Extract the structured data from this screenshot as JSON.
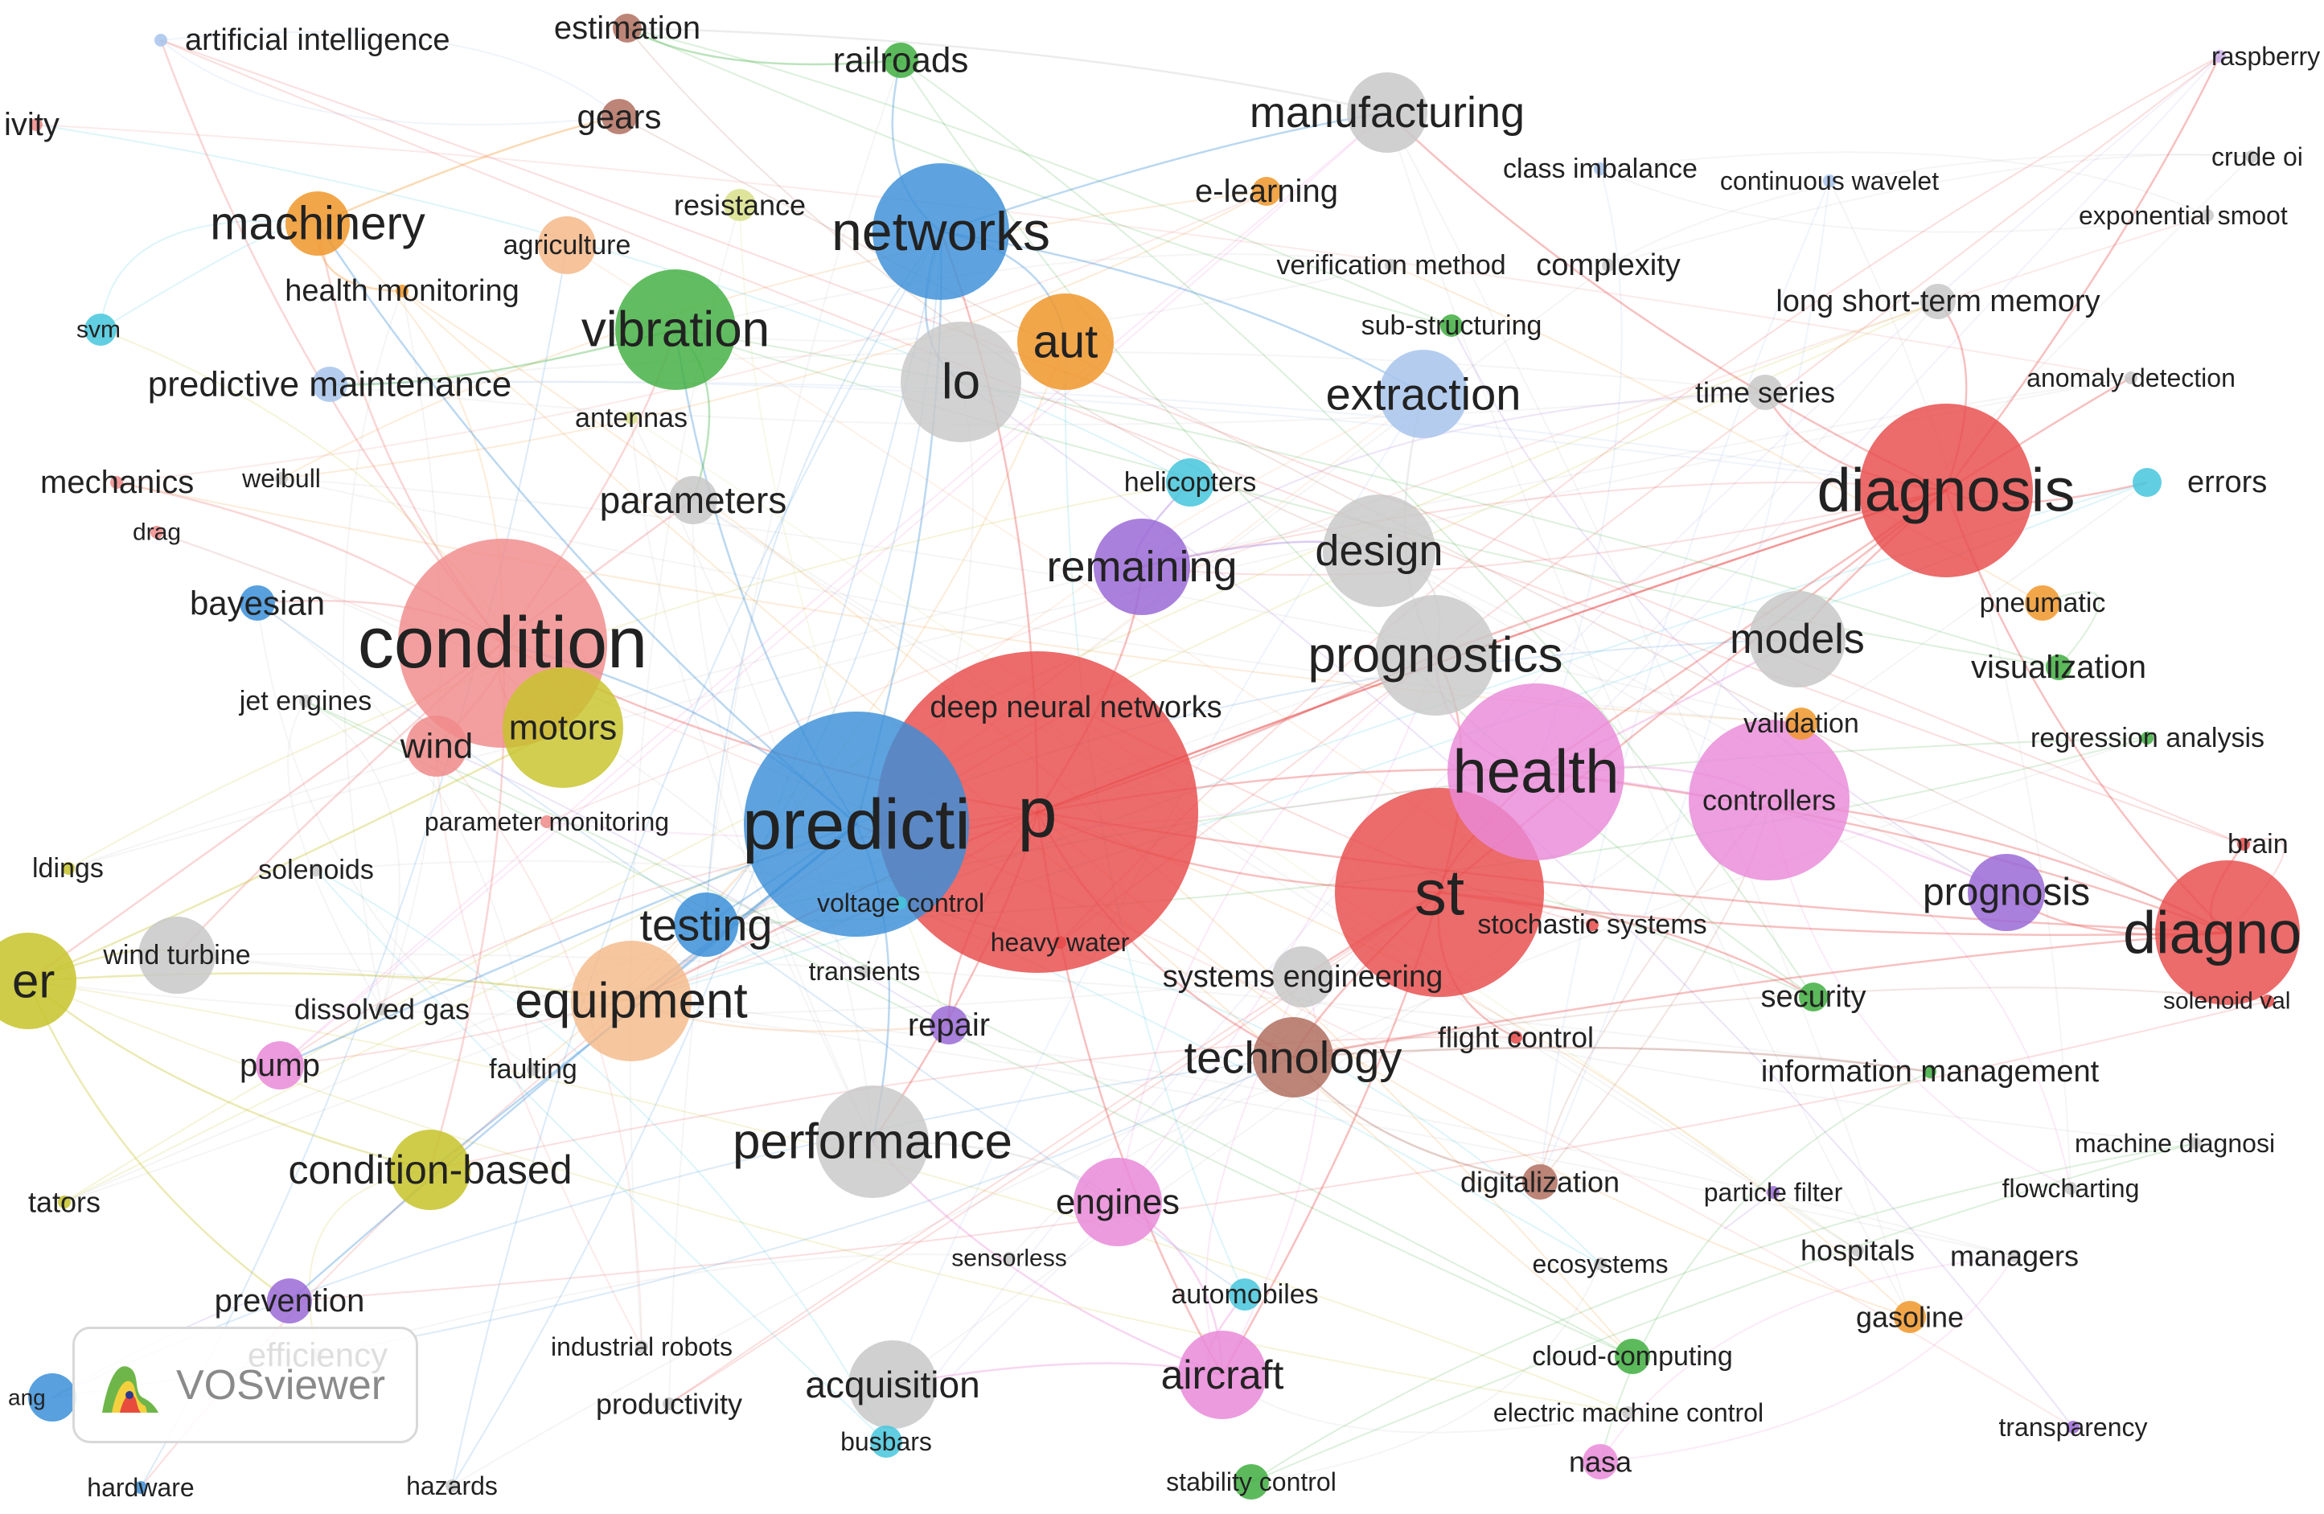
{
  "app": {
    "name": "VOSviewer"
  },
  "colors": {
    "red": "#e84a4a",
    "blue": "#3b8fd8",
    "green": "#3fae3f",
    "olive": "#c7c32a",
    "orange": "#f0962a",
    "purple": "#9a6ad6",
    "pink": "#e98ad8",
    "gray": "#c8c8c8",
    "salmon": "#f08a8a",
    "cyan": "#45c6dc",
    "brown": "#b07060",
    "lavender": "#c9b0e8",
    "lightblue": "#a7c4ec",
    "peach": "#f4b98a",
    "yellowgreen": "#d8e08a"
  },
  "nodes": [
    {
      "id": "ai",
      "label": "artificial intelligence",
      "color": "lightblue"
    },
    {
      "id": "estimation",
      "label": "estimation",
      "color": "brown"
    },
    {
      "id": "railroads",
      "label": "railroads",
      "color": "green"
    },
    {
      "id": "raspberry",
      "label": "raspberry p",
      "color": "lavender"
    },
    {
      "id": "ivity",
      "label": "ivity",
      "color": "salmon"
    },
    {
      "id": "gears",
      "label": "gears",
      "color": "brown"
    },
    {
      "id": "manufacturing",
      "label": "manufacturing",
      "color": "gray"
    },
    {
      "id": "crude",
      "label": "crude oi",
      "color": "gray"
    },
    {
      "id": "classimb",
      "label": "class imbalance",
      "color": "lightblue"
    },
    {
      "id": "contwavelet",
      "label": "continuous wavelet",
      "color": "lightblue"
    },
    {
      "id": "expsmooth",
      "label": "exponential smoot",
      "color": "gray"
    },
    {
      "id": "machinery",
      "label": "machinery",
      "color": "orange"
    },
    {
      "id": "resistance",
      "label": "resistance",
      "color": "yellowgreen"
    },
    {
      "id": "networks",
      "label": "networks",
      "color": "blue"
    },
    {
      "id": "elearning",
      "label": "e-learning",
      "color": "orange"
    },
    {
      "id": "agriculture",
      "label": "agriculture",
      "color": "peach"
    },
    {
      "id": "healthmon",
      "label": "health monitoring",
      "color": "orange"
    },
    {
      "id": "verification",
      "label": "verification method",
      "color": "gray"
    },
    {
      "id": "complexity",
      "label": "complexity",
      "color": "gray"
    },
    {
      "id": "lstm",
      "label": "long short-term memory",
      "color": "gray"
    },
    {
      "id": "svm",
      "label": "svm",
      "color": "cyan"
    },
    {
      "id": "vibration",
      "label": "vibration",
      "color": "green"
    },
    {
      "id": "aut",
      "label": "aut",
      "color": "orange"
    },
    {
      "id": "substructuring",
      "label": "sub-structuring",
      "color": "green"
    },
    {
      "id": "predmaint",
      "label": "predictive maintenance",
      "color": "lightblue"
    },
    {
      "id": "lo",
      "label": "lo",
      "color": "gray"
    },
    {
      "id": "extraction",
      "label": "extraction",
      "color": "lightblue"
    },
    {
      "id": "timeseries",
      "label": "time series",
      "color": "gray"
    },
    {
      "id": "anomaly",
      "label": "anomaly detection",
      "color": "gray"
    },
    {
      "id": "antennas",
      "label": "antennas",
      "color": "yellowgreen"
    },
    {
      "id": "mechanics",
      "label": "mechanics",
      "color": "salmon"
    },
    {
      "id": "weibull",
      "label": "weibull",
      "color": "gray"
    },
    {
      "id": "parameters",
      "label": "parameters",
      "color": "gray"
    },
    {
      "id": "helicopters",
      "label": "helicopters",
      "color": "cyan"
    },
    {
      "id": "diagnosis",
      "label": "diagnosis",
      "color": "red"
    },
    {
      "id": "errors",
      "label": "errors",
      "color": "cyan"
    },
    {
      "id": "drag",
      "label": "drag",
      "color": "salmon"
    },
    {
      "id": "remaining",
      "label": "remaining",
      "color": "purple"
    },
    {
      "id": "design",
      "label": "design",
      "color": "gray"
    },
    {
      "id": "bayesian",
      "label": "bayesian",
      "color": "blue"
    },
    {
      "id": "pneumatic",
      "label": "pneumatic",
      "color": "orange"
    },
    {
      "id": "condition",
      "label": "condition",
      "color": "salmon"
    },
    {
      "id": "prognostics",
      "label": "prognostics",
      "color": "gray"
    },
    {
      "id": "models",
      "label": "models",
      "color": "gray"
    },
    {
      "id": "visualization",
      "label": "visualization",
      "color": "green"
    },
    {
      "id": "jetengines",
      "label": "jet engines",
      "color": "gray"
    },
    {
      "id": "dnn",
      "label": "deep neural networks",
      "color": "red"
    },
    {
      "id": "validation",
      "label": "validation",
      "color": "orange"
    },
    {
      "id": "regression",
      "label": "regression analysis",
      "color": "green"
    },
    {
      "id": "wind",
      "label": "wind",
      "color": "salmon"
    },
    {
      "id": "motors",
      "label": "motors",
      "color": "olive"
    },
    {
      "id": "health",
      "label": "health",
      "color": "pink"
    },
    {
      "id": "controllers",
      "label": "controllers",
      "color": "pink"
    },
    {
      "id": "paramon",
      "label": "parameter monitoring",
      "color": "salmon"
    },
    {
      "id": "predicti",
      "label": "predicti",
      "color": "blue"
    },
    {
      "id": "p",
      "label": "p",
      "color": "red"
    },
    {
      "id": "brain",
      "label": "brain",
      "color": "red"
    },
    {
      "id": "ldings",
      "label": "ldings",
      "color": "olive"
    },
    {
      "id": "solenoids",
      "label": "solenoids",
      "color": "gray"
    },
    {
      "id": "st",
      "label": "st",
      "color": "red"
    },
    {
      "id": "prognosis",
      "label": "prognosis",
      "color": "purple"
    },
    {
      "id": "diagno",
      "label": "diagno",
      "color": "red"
    },
    {
      "id": "voltagecontrol",
      "label": "voltage control",
      "color": "cyan"
    },
    {
      "id": "testing",
      "label": "testing",
      "color": "blue"
    },
    {
      "id": "stochastic",
      "label": "stochastic systems",
      "color": "red"
    },
    {
      "id": "windturbine",
      "label": "wind turbine",
      "color": "gray"
    },
    {
      "id": "heavywater",
      "label": "heavy water",
      "color": "red"
    },
    {
      "id": "transients",
      "label": "transients",
      "color": "gray"
    },
    {
      "id": "systemseng",
      "label": "systems engineering",
      "color": "gray"
    },
    {
      "id": "er",
      "label": "er",
      "color": "olive"
    },
    {
      "id": "equipment",
      "label": "equipment",
      "color": "peach"
    },
    {
      "id": "security",
      "label": "security",
      "color": "green"
    },
    {
      "id": "solenoidval",
      "label": "solenoid val",
      "color": "red"
    },
    {
      "id": "dissolvedgas",
      "label": "dissolved gas",
      "color": "gray"
    },
    {
      "id": "repair",
      "label": "repair",
      "color": "purple"
    },
    {
      "id": "flightcontrol",
      "label": "flight control",
      "color": "red"
    },
    {
      "id": "pump",
      "label": "pump",
      "color": "pink"
    },
    {
      "id": "faulting",
      "label": "faulting",
      "color": "gray"
    },
    {
      "id": "technology",
      "label": "technology",
      "color": "brown"
    },
    {
      "id": "infomgmt",
      "label": "information management",
      "color": "green"
    },
    {
      "id": "performance",
      "label": "performance",
      "color": "gray"
    },
    {
      "id": "machinediag",
      "label": "machine diagnosi",
      "color": "gray"
    },
    {
      "id": "conditionbased",
      "label": "condition-based",
      "color": "olive"
    },
    {
      "id": "tators",
      "label": "tators",
      "color": "olive"
    },
    {
      "id": "digitalization",
      "label": "digitalization",
      "color": "brown"
    },
    {
      "id": "particlefilter",
      "label": "particle filter",
      "color": "purple"
    },
    {
      "id": "flowcharting",
      "label": "flowcharting",
      "color": "gray"
    },
    {
      "id": "engines",
      "label": "engines",
      "color": "pink"
    },
    {
      "id": "sensorless",
      "label": "sensorless",
      "color": "gray"
    },
    {
      "id": "ecosystems",
      "label": "ecosystems",
      "color": "gray"
    },
    {
      "id": "hospitals",
      "label": "hospitals",
      "color": "gray"
    },
    {
      "id": "managers",
      "label": "managers",
      "color": "gray"
    },
    {
      "id": "prevention",
      "label": "prevention",
      "color": "purple"
    },
    {
      "id": "automobiles",
      "label": "automobiles",
      "color": "cyan"
    },
    {
      "id": "gasoline",
      "label": "gasoline",
      "color": "orange"
    },
    {
      "id": "efficiency",
      "label": "efficiency",
      "color": "gray"
    },
    {
      "id": "industrialrobots",
      "label": "industrial robots",
      "color": "gray"
    },
    {
      "id": "cloud",
      "label": "cloud-computing",
      "color": "green"
    },
    {
      "id": "ang",
      "label": "ang",
      "color": "blue"
    },
    {
      "id": "productivity",
      "label": "productivity",
      "color": "gray"
    },
    {
      "id": "acquisition",
      "label": "acquisition",
      "color": "gray"
    },
    {
      "id": "aircraft",
      "label": "aircraft",
      "color": "pink"
    },
    {
      "id": "electricmachine",
      "label": "electric machine control",
      "color": "gray"
    },
    {
      "id": "transparency",
      "label": "transparency",
      "color": "purple"
    },
    {
      "id": "busbars",
      "label": "busbars",
      "color": "cyan"
    },
    {
      "id": "nasa",
      "label": "nasa",
      "color": "pink"
    },
    {
      "id": "hardware",
      "label": "hardware",
      "color": "blue"
    },
    {
      "id": "hazards",
      "label": "hazards",
      "color": "gray"
    },
    {
      "id": "stabilitycontrol",
      "label": "stability control",
      "color": "green"
    }
  ],
  "links": [
    [
      "p",
      "predicti"
    ],
    [
      "p",
      "diagnosis"
    ],
    [
      "p",
      "st"
    ],
    [
      "p",
      "health"
    ],
    [
      "p",
      "condition"
    ],
    [
      "p",
      "networks"
    ],
    [
      "p",
      "prognostics"
    ],
    [
      "p",
      "performance"
    ],
    [
      "p",
      "aircraft"
    ],
    [
      "p",
      "equipment"
    ],
    [
      "p",
      "technology"
    ],
    [
      "p",
      "remaining"
    ],
    [
      "p",
      "diagno"
    ],
    [
      "predicti",
      "condition"
    ],
    [
      "predicti",
      "testing"
    ],
    [
      "predicti",
      "equipment"
    ],
    [
      "predicti",
      "vibration"
    ],
    [
      "predicti",
      "networks"
    ],
    [
      "predicti",
      "machinery"
    ],
    [
      "predicti",
      "conditionbased"
    ],
    [
      "predicti",
      "prevention"
    ],
    [
      "predicti",
      "performance"
    ],
    [
      "diagnosis",
      "st"
    ],
    [
      "diagnosis",
      "health"
    ],
    [
      "diagnosis",
      "models"
    ],
    [
      "diagnosis",
      "prognostics"
    ],
    [
      "diagnosis",
      "manufacturing"
    ],
    [
      "diagnosis",
      "lstm"
    ],
    [
      "diagnosis",
      "timeseries"
    ],
    [
      "diagnosis",
      "raspberry"
    ],
    [
      "diagnosis",
      "diagno"
    ],
    [
      "diagnosis",
      "p"
    ],
    [
      "diagno",
      "st"
    ],
    [
      "diagno",
      "health"
    ],
    [
      "diagno",
      "prognosis"
    ],
    [
      "diagno",
      "controllers"
    ],
    [
      "diagno",
      "brain"
    ],
    [
      "diagno",
      "technology"
    ],
    [
      "st",
      "health"
    ],
    [
      "st",
      "systemseng"
    ],
    [
      "st",
      "flightcontrol"
    ],
    [
      "st",
      "prognostics"
    ],
    [
      "st",
      "technology"
    ],
    [
      "st",
      "aircraft"
    ],
    [
      "condition",
      "motors"
    ],
    [
      "condition",
      "wind"
    ],
    [
      "condition",
      "machinery"
    ],
    [
      "condition",
      "vibration"
    ],
    [
      "condition",
      "er"
    ],
    [
      "condition",
      "conditionbased"
    ],
    [
      "condition",
      "windturbine"
    ],
    [
      "condition",
      "bayesian"
    ],
    [
      "condition",
      "parameters"
    ],
    [
      "networks",
      "aut"
    ],
    [
      "networks",
      "lo"
    ],
    [
      "networks",
      "manufacturing"
    ],
    [
      "networks",
      "railroads"
    ],
    [
      "networks",
      "extraction"
    ],
    [
      "health",
      "prognostics"
    ],
    [
      "health",
      "controllers"
    ],
    [
      "health",
      "models"
    ],
    [
      "health",
      "prognosis"
    ],
    [
      "er",
      "conditionbased"
    ],
    [
      "er",
      "equipment"
    ],
    [
      "er",
      "motors"
    ],
    [
      "er",
      "windturbine"
    ],
    [
      "er",
      "prevention"
    ],
    [
      "aircraft",
      "engines"
    ],
    [
      "aircraft",
      "performance"
    ],
    [
      "aircraft",
      "acquisition"
    ],
    [
      "aircraft",
      "automobiles"
    ],
    [
      "remaining",
      "design"
    ],
    [
      "remaining",
      "helicopters"
    ],
    [
      "prognostics",
      "design"
    ],
    [
      "prognostics",
      "extraction"
    ],
    [
      "machinery",
      "gears"
    ],
    [
      "machinery",
      "healthmon"
    ],
    [
      "vibration",
      "parameters"
    ],
    [
      "vibration",
      "predmaint"
    ],
    [
      "technology",
      "infomgmt"
    ],
    [
      "technology",
      "digitalization"
    ],
    [
      "performance",
      "engines"
    ],
    [
      "equipment",
      "repair"
    ],
    [
      "manufacturing",
      "estimation"
    ],
    [
      "railroads",
      "estimation"
    ],
    [
      "diagnosis",
      "anomaly"
    ],
    [
      "diagnosis",
      "errors"
    ],
    [
      "condition",
      "mechanics"
    ],
    [
      "condition",
      "ai"
    ],
    [
      "st",
      "security"
    ],
    [
      "p",
      "repair"
    ],
    [
      "predicti",
      "pump"
    ]
  ]
}
